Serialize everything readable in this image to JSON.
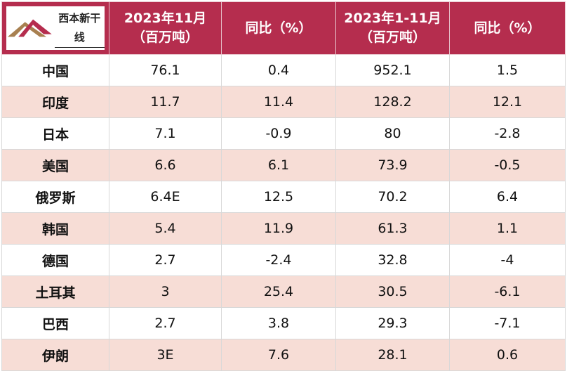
{
  "logo": {
    "text": "西本新干线",
    "colors": [
      "#b52d4e",
      "#a88050"
    ]
  },
  "header": {
    "col1": "2023年11月",
    "col1_unit": "（百万吨）",
    "col2": "同比（%）",
    "col3": "2023年1-11月",
    "col3_unit": "（百万吨）",
    "col4": "同比（%）",
    "bg": "#b52d4e"
  },
  "rows": [
    {
      "country": "中国",
      "nov": "76.1",
      "nov_yoy": "0.4",
      "ytd": "952.1",
      "ytd_yoy": "1.5"
    },
    {
      "country": "印度",
      "nov": "11.7",
      "nov_yoy": "11.4",
      "ytd": "128.2",
      "ytd_yoy": "12.1"
    },
    {
      "country": "日本",
      "nov": "7.1",
      "nov_yoy": "-0.9",
      "ytd": "80",
      "ytd_yoy": "-2.8"
    },
    {
      "country": "美国",
      "nov": "6.6",
      "nov_yoy": "6.1",
      "ytd": "73.9",
      "ytd_yoy": "-0.5"
    },
    {
      "country": "俄罗斯",
      "nov": "6.4E",
      "nov_yoy": "12.5",
      "ytd": "70.2",
      "ytd_yoy": "6.4"
    },
    {
      "country": "韩国",
      "nov": "5.4",
      "nov_yoy": "11.9",
      "ytd": "61.3",
      "ytd_yoy": "1.1"
    },
    {
      "country": "德国",
      "nov": "2.7",
      "nov_yoy": "-2.4",
      "ytd": "32.8",
      "ytd_yoy": "-4"
    },
    {
      "country": "土耳其",
      "nov": "3",
      "nov_yoy": "25.4",
      "ytd": "30.5",
      "ytd_yoy": "-6.1"
    },
    {
      "country": "巴西",
      "nov": "2.7",
      "nov_yoy": "3.8",
      "ytd": "29.3",
      "ytd_yoy": "-7.1"
    },
    {
      "country": "伊朗",
      "nov": "3E",
      "nov_yoy": "7.6",
      "ytd": "28.1",
      "ytd_yoy": "0.6"
    }
  ]
}
